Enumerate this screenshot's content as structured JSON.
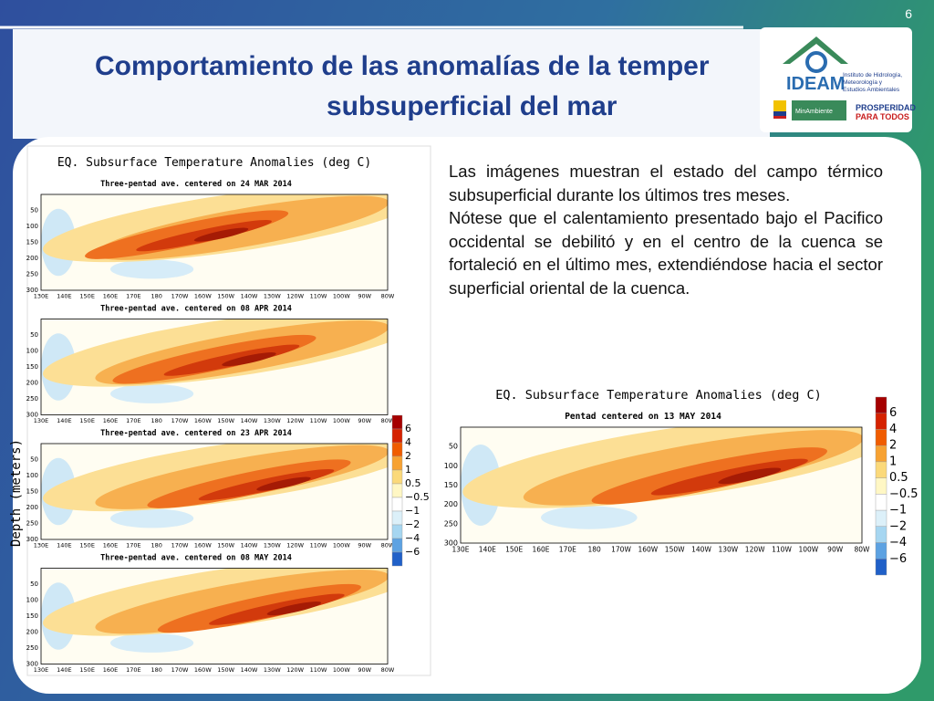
{
  "slide_number": "6",
  "title": {
    "line1": "Comportamiento de las anomalías de la temper",
    "line2": "subsuperficial del mar"
  },
  "logo": {
    "name": "IDEAM",
    "institute": [
      "Instituto de Hidrología,",
      "Meteorología y",
      "Estudios Ambientales"
    ],
    "ministry": "MinAmbiente",
    "slogan": [
      "PROSPERIDAD",
      "PARA TODOS"
    ]
  },
  "text": [
    "Las imágenes muestran el estado del campo térmico subsuperficial durante los últimos tres meses.",
    "Nótese que el calentamiento presentado bajo el Pacifico occidental se debilitó y en el centro de la cuenca se fortaleció en el último mes, extendiéndose hacia el sector superficial  oriental de la cuenca."
  ],
  "left_figure": {
    "title": "EQ. Subsurface Temperature Anomalies (deg C)",
    "y_label": "Depth (meters)",
    "panels": [
      "Three-pentad ave. centered on 24 MAR 2014",
      "Three-pentad ave. centered on 08 APR 2014",
      "Three-pentad ave. centered on 23 APR 2014",
      "Three-pentad ave. centered on 08 MAY 2014"
    ]
  },
  "right_figure": {
    "title": "EQ. Subsurface Temperature Anomalies (deg C)",
    "panels": [
      "Pentad centered on 13 MAY 2014"
    ]
  },
  "depth_ticks": [
    "50",
    "100",
    "150",
    "200",
    "250",
    "300"
  ],
  "lon_ticks": [
    "130E",
    "140E",
    "150E",
    "160E",
    "170E",
    "180",
    "170W",
    "160W",
    "150W",
    "140W",
    "130W",
    "120W",
    "110W",
    "100W",
    "90W",
    "80W"
  ],
  "colorbar": [
    "6",
    "4",
    "2",
    "1",
    "0.5",
    "−0.5",
    "−1",
    "−2",
    "−4",
    "−6"
  ]
}
